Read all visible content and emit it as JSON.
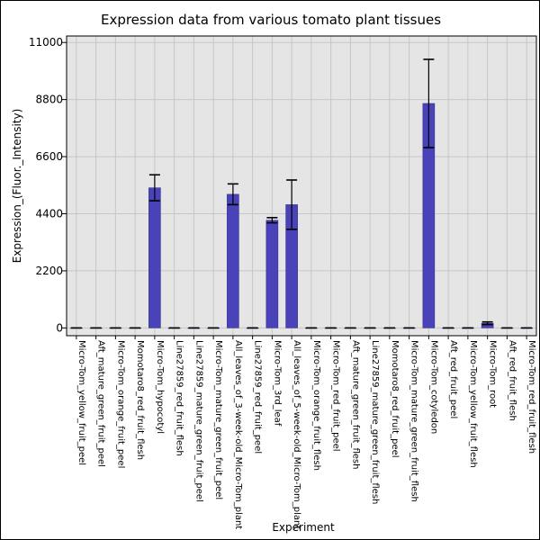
{
  "chart_data": {
    "type": "bar",
    "title": "Expression data from various tomato plant tissues",
    "xlabel": "Experiment",
    "ylabel": "Expression_(Fluor._Intensity)",
    "ylim": [
      -300,
      11250
    ],
    "yticks": [
      0,
      2200,
      4400,
      6600,
      8800,
      11000
    ],
    "grid": true,
    "categories": [
      "Micro-Tom_yellow_fruit_peel",
      "Aft_mature_green_fruit_peel",
      "Micro-Tom_orange_fruit_peel",
      "Momotaro8_red_fruit_flesh",
      "Micro-Tom_hypocotyl",
      "Line27859_red_fruit_flesh",
      "Line27859_mature_green_fruit_peel",
      "Micro-Tom_mature_green_fruit_peel",
      "All_leaves_of_3-week-old_Micro-Tom_plant",
      "Line27859_red_fruit_peel",
      "Micro-Tom_3rd_leaf",
      "All_leaves_of_5-week-old_Micro-Tom_plant",
      "Micro-Tom_orange_fruit_flesh",
      "Micro-Tom_red_fruit_peel",
      "Aft_mature_green_fruit_flesh",
      "Line27859_mature_green_fruit_flesh",
      "Momotaro8_red_fruit_peel",
      "Micro-Tom_mature_green_fruit_flesh",
      "Micro-Tom_cotyledon",
      "Aft_red_fruit_peel",
      "Micro-Tom_yellow_fruit_flesh",
      "Micro-Tom_root",
      "Aft_red_fruit_flesh",
      "Micro-Tom_red_fruit_flesh"
    ],
    "values": [
      0,
      0,
      0,
      0,
      5400,
      0,
      0,
      0,
      5150,
      0,
      4150,
      4750,
      0,
      0,
      0,
      0,
      0,
      0,
      8650,
      0,
      0,
      180,
      0,
      0
    ],
    "error": [
      0,
      0,
      0,
      0,
      500,
      0,
      0,
      0,
      400,
      0,
      100,
      950,
      0,
      0,
      0,
      0,
      0,
      0,
      1700,
      0,
      0,
      50,
      0,
      0
    ],
    "bar_color": "#4a42b8",
    "plot_background": "#e5e5e5",
    "grid_color": "#c6c6c6"
  }
}
